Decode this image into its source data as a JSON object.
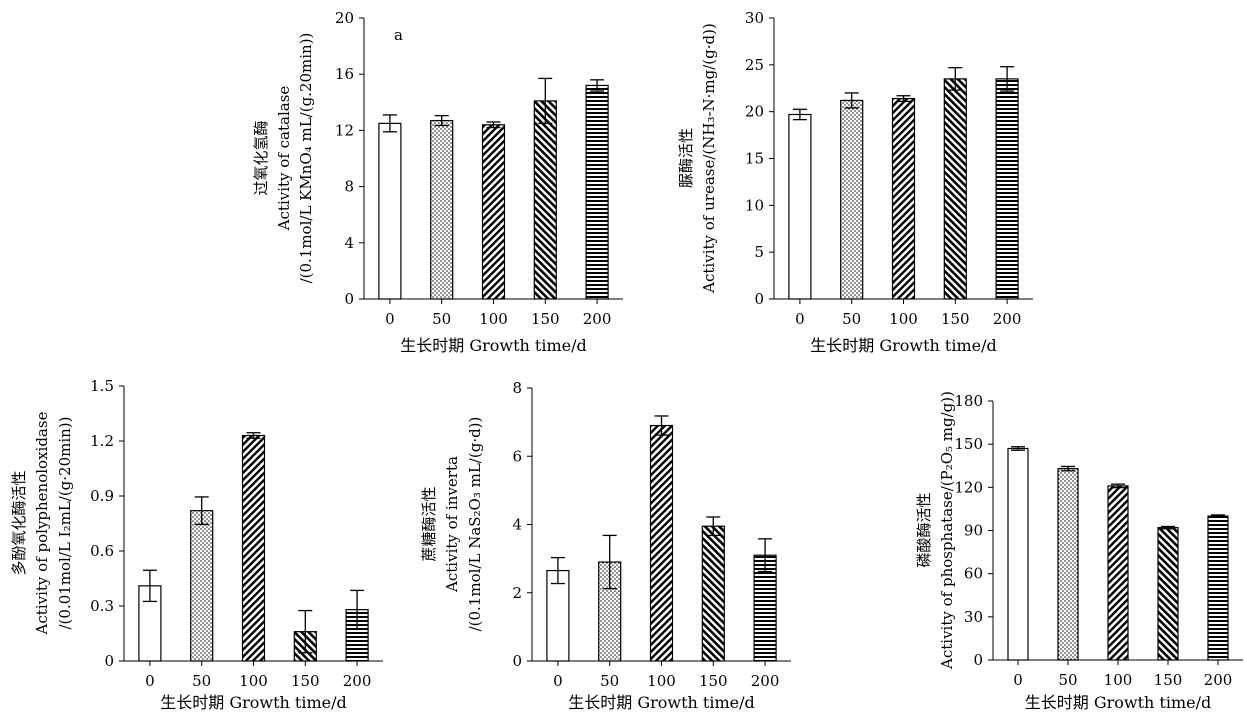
{
  "chart_data": [
    {
      "type": "bar",
      "panel_label": "a",
      "categories": [
        "0",
        "50",
        "100",
        "150",
        "200"
      ],
      "values": [
        12.5,
        12.7,
        12.4,
        14.1,
        15.2
      ],
      "errors": [
        0.6,
        0.35,
        0.2,
        1.6,
        0.4
      ],
      "ylabel_lines": [
        "过氧化氢酶",
        "Activity of catalase",
        "/(0.1mol/L KMnO₄ mL/(g.20min))"
      ],
      "xlabel": "生长时期  Growth time/d",
      "ylim": [
        0,
        20
      ],
      "yticks": [
        "0",
        "4",
        "8",
        "12",
        "16",
        "20"
      ]
    },
    {
      "type": "bar",
      "panel_label": "",
      "categories": [
        "0",
        "50",
        "100",
        "150",
        "200"
      ],
      "values": [
        19.7,
        21.2,
        21.4,
        23.5,
        23.5
      ],
      "errors": [
        0.55,
        0.8,
        0.3,
        1.2,
        1.3
      ],
      "ylabel_lines": [
        "脲酶活性",
        "Activity of urease/(NH₃-N·mg/(g·d))"
      ],
      "xlabel": "生长时期  Growth time/d",
      "ylim": [
        0,
        30
      ],
      "yticks": [
        "0",
        "5",
        "10",
        "15",
        "20",
        "25",
        "30"
      ]
    },
    {
      "type": "bar",
      "panel_label": "",
      "categories": [
        "0",
        "50",
        "100",
        "150",
        "200"
      ],
      "values": [
        0.41,
        0.82,
        1.23,
        0.16,
        0.28
      ],
      "errors": [
        0.085,
        0.075,
        0.015,
        0.115,
        0.105
      ],
      "ylabel_lines": [
        "多酚氧化酶活性",
        "Activity of polyphenoloxidase",
        "/(0.01mol/L I₂mL/(g·20min))"
      ],
      "xlabel": "生长时期  Growth time/d",
      "ylim": [
        0,
        1.5
      ],
      "yticks": [
        "0",
        "0.3",
        "0.6",
        "0.9",
        "1.2",
        "1.5"
      ]
    },
    {
      "type": "bar",
      "panel_label": "",
      "categories": [
        "0",
        "50",
        "100",
        "150",
        "200"
      ],
      "values": [
        2.65,
        2.9,
        6.9,
        3.95,
        3.1
      ],
      "errors": [
        0.38,
        0.78,
        0.28,
        0.27,
        0.48
      ],
      "ylabel_lines": [
        "蔗糖酶活性",
        "Activity of inverta",
        "/(0.1mol/L NaS₂O₃ mL/(g·d))"
      ],
      "xlabel": "生长时期  Growth time/d",
      "ylim": [
        0,
        8
      ],
      "yticks": [
        "0",
        "2",
        "4",
        "6",
        "8"
      ]
    },
    {
      "type": "bar",
      "panel_label": "",
      "categories": [
        "0",
        "50",
        "100",
        "150",
        "200"
      ],
      "values": [
        147,
        133,
        121,
        92,
        100
      ],
      "errors": [
        1.2,
        1.5,
        1.2,
        0.8,
        0.8
      ],
      "ylabel_lines": [
        "磷酸酶活性",
        "Activity of phosphatase/(P₂O₅ mg/g))"
      ],
      "xlabel": "生长时期  Growth time/d",
      "ylim": [
        0,
        180
      ],
      "yticks": [
        "0",
        "30",
        "60",
        "90",
        "120",
        "150",
        "180"
      ]
    }
  ]
}
